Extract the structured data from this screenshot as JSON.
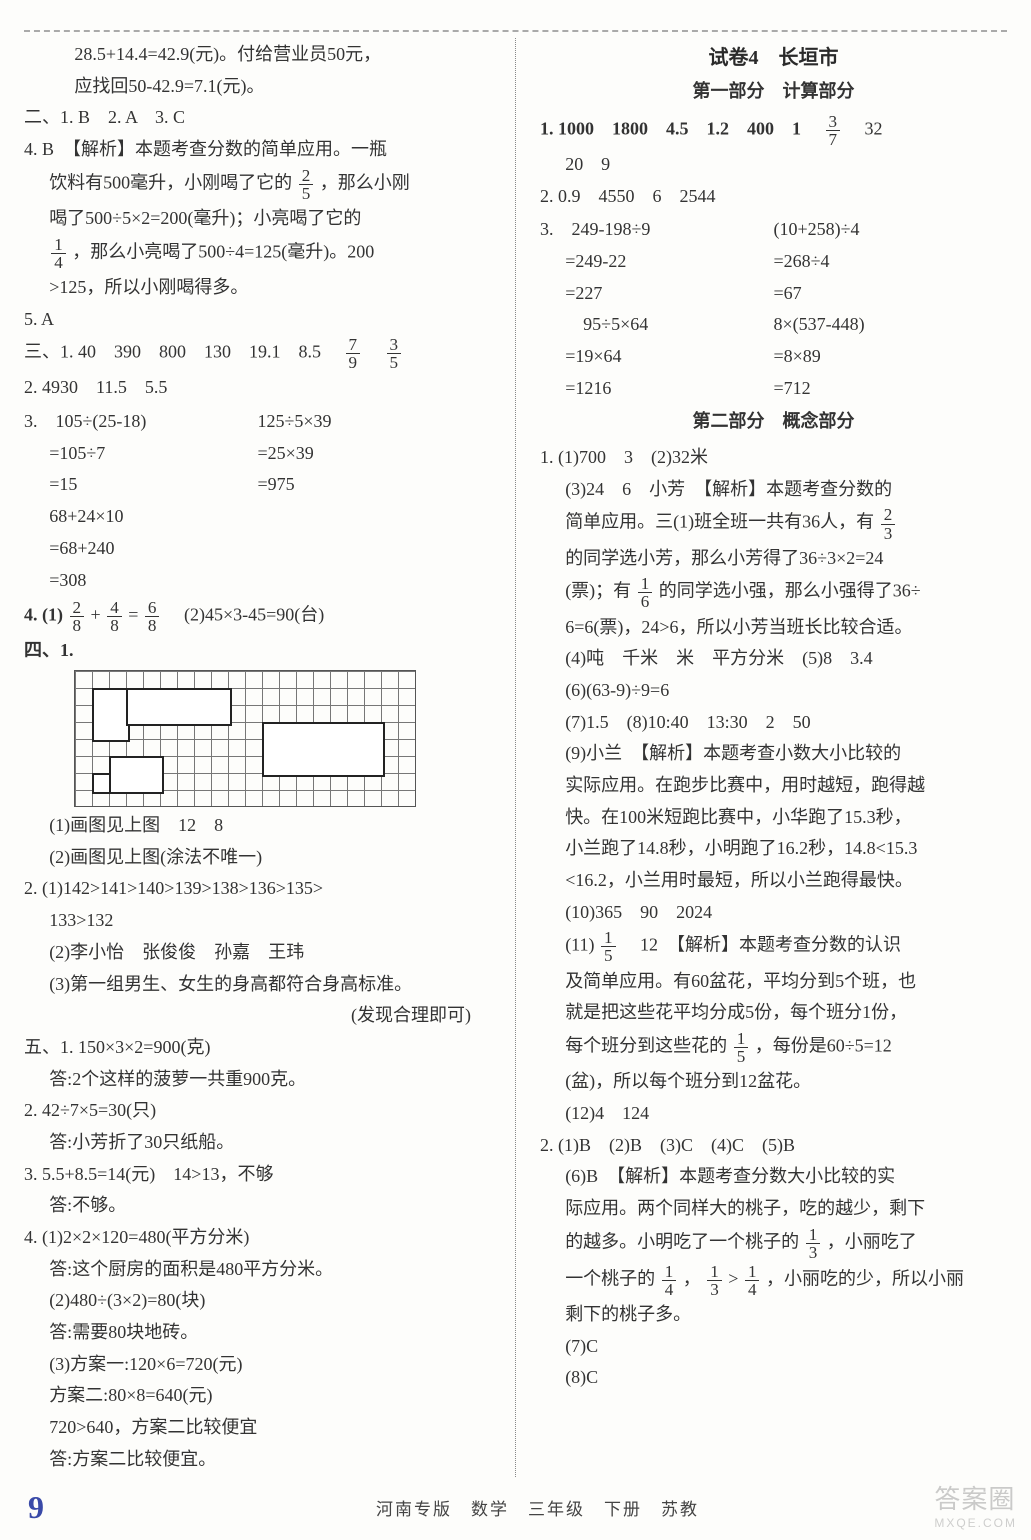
{
  "left": {
    "topLine1": "28.5+14.4=42.9(元)。付给营业员50元，",
    "topLine2": "应找回50-42.9=7.1(元)。",
    "two_heading": "二、1. B　2. A　3. C",
    "q4_head": "4. B　【解析】本题考查分数的简单应用。一瓶",
    "q4_l1a": "饮料有500毫升，小刚喝了它的",
    "q4_l1_frac_num": "2",
    "q4_l1_frac_den": "5",
    "q4_l1b": "，那么小刚",
    "q4_l2": "喝了500÷5×2=200(毫升)；小亮喝了它的",
    "q4_l3_frac_num": "1",
    "q4_l3_frac_den": "4",
    "q4_l3b": "，那么小亮喝了500÷4=125(毫升)。200",
    "q4_l4": ">125，所以小刚喝得多。",
    "q5": "5. A",
    "three_1a": "三、1. 40　390　800　130　19.1　8.5　",
    "three_1_f1n": "7",
    "three_1_f1d": "9",
    "three_1_f2n": "3",
    "three_1_f2d": "5",
    "three_2": "2. 4930　11.5　5.5",
    "three_3_l": "3.　105÷(25-18)",
    "three_3_r": "125÷5×39",
    "three_3_l2": "=105÷7",
    "three_3_r2": "=25×39",
    "three_3_l3": "=15",
    "three_3_r3": "=975",
    "three_3_l4": "68+24×10",
    "three_3_l5": "=68+240",
    "three_3_l6": "=308",
    "three_4a": "4. (1)",
    "t4_f1n": "2",
    "t4_f1d": "8",
    "t4_plus": "+",
    "t4_f2n": "4",
    "t4_f2d": "8",
    "t4_eq": "=",
    "t4_f3n": "6",
    "t4_f3d": "8",
    "three_4b": "　(2)45×3-45=90(台)",
    "four_head": "四、1.",
    "four_1_1": "(1)画图见上图　12　8",
    "four_1_2": "(2)画图见上图(涂法不唯一)",
    "four_2_1": "2. (1)142>141>140>139>138>136>135>",
    "four_2_1b": "133>132",
    "four_2_2": "(2)李小怡　张俊俊　孙嘉　王玮",
    "four_2_3": "(3)第一组男生、女生的身高都符合身高标准。",
    "four_2_3b": "(发现合理即可)",
    "five_1a": "五、1. 150×3×2=900(克)",
    "five_1b": "答:2个这样的菠萝一共重900克。",
    "five_2a": "2. 42÷7×5=30(只)",
    "five_2b": "答:小芳折了30只纸船。",
    "five_3a": "3. 5.5+8.5=14(元)　14>13，不够",
    "five_3b": "答:不够。",
    "five_4a": "4. (1)2×2×120=480(平方分米)",
    "five_4b": "答:这个厨房的面积是480平方分米。",
    "five_4c": "(2)480÷(3×2)=80(块)",
    "five_4d": "答:需要80块地砖。",
    "five_4e": "(3)方案一:120×6=720(元)",
    "five_4f": "方案二:80×8=640(元)",
    "five_4g": "720>640，方案二比较便宜",
    "five_4h": "答:方案二比较便宜。"
  },
  "right": {
    "title": "试卷4　长垣市",
    "part1": "第一部分　计算部分",
    "r1a": "1. 1000　1800　4.5　1.2　400　1　",
    "r1_fn": "3",
    "r1_fd": "7",
    "r1b": "　32",
    "r1c": "20　9",
    "r2": "2. 0.9　4550　6　2544",
    "r3_l1l": "3.　249-198÷9",
    "r3_l1r": "(10+258)÷4",
    "r3_l2l": "=249-22",
    "r3_l2r": "=268÷4",
    "r3_l3l": "=227",
    "r3_l3r": "=67",
    "r3_l4l": "　95÷5×64",
    "r3_l4r": "8×(537-448)",
    "r3_l5l": "=19×64",
    "r3_l5r": "=8×89",
    "r3_l6l": "=1216",
    "r3_l6r": "=712",
    "part2": "第二部分　概念部分",
    "p2_1_1": "1. (1)700　3　(2)32米",
    "p2_1_3a": "(3)24　6　小芳　【解析】本题考查分数的",
    "p2_1_3b": "简单应用。三(1)班全班一共有36人，有",
    "p2_1_3b_fn": "2",
    "p2_1_3b_fd": "3",
    "p2_1_3c": "的同学选小芳，那么小芳得了36÷3×2=24",
    "p2_1_3d_a": "(票)；有",
    "p2_1_3d_fn": "1",
    "p2_1_3d_fd": "6",
    "p2_1_3d_b": "的同学选小强，那么小强得了36÷",
    "p2_1_3e": "6=6(票)，24>6，所以小芳当班长比较合适。",
    "p2_1_4": "(4)吨　千米　米　平方分米　(5)8　3.4",
    "p2_1_6": "(6)(63-9)÷9=6",
    "p2_1_7": "(7)1.5　(8)10:40　13:30　2　50",
    "p2_1_9a": "(9)小兰　【解析】本题考查小数大小比较的",
    "p2_1_9b": "实际应用。在跑步比赛中，用时越短，跑得越",
    "p2_1_9c": "快。在100米短跑比赛中，小华跑了15.3秒，",
    "p2_1_9d": "小兰跑了14.8秒，小明跑了16.2秒，14.8<15.3",
    "p2_1_9e": "<16.2，小兰用时最短，所以小兰跑得最快。",
    "p2_1_10": "(10)365　90　2024",
    "p2_1_11a": "(11)",
    "p2_1_11_fn": "1",
    "p2_1_11_fd": "5",
    "p2_1_11b": "　12　【解析】本题考查分数的认识",
    "p2_1_11c": "及简单应用。有60盆花，平均分到5个班，也",
    "p2_1_11d": "就是把这些花平均分成5份，每个班分1份，",
    "p2_1_11e_a": "每个班分到这些花的",
    "p2_1_11e_fn": "1",
    "p2_1_11e_fd": "5",
    "p2_1_11e_b": "，每份是60÷5=12",
    "p2_1_11f": "(盆)，所以每个班分到12盆花。",
    "p2_1_12": "(12)4　124",
    "p2_2_1": "2. (1)B　(2)B　(3)C　(4)C　(5)B",
    "p2_2_6a": "(6)B　【解析】本题考查分数大小比较的实",
    "p2_2_6b_a": "际应用。两个同样大的桃子，吃的越少，剩下",
    "p2_2_6c_a": "的越多。小明吃了一个桃子的",
    "p2_2_6c_fn": "1",
    "p2_2_6c_fd": "3",
    "p2_2_6c_b": "，小丽吃了",
    "p2_2_6d_a": "一个桃子的",
    "p2_2_6d_f1n": "1",
    "p2_2_6d_f1d": "4",
    "p2_2_6d_comma": "，",
    "p2_2_6d_f2n": "1",
    "p2_2_6d_f2d": "3",
    "p2_2_6d_gt": ">",
    "p2_2_6d_f3n": "1",
    "p2_2_6d_f3d": "4",
    "p2_2_6d_b": "，小丽吃的少，所以小丽",
    "p2_2_6e": "剩下的桃子多。",
    "p2_2_7": "(7)C",
    "p2_2_8": "(8)C"
  },
  "footer": {
    "page": "9",
    "text": "河南专版　数学　三年级　下册　苏教"
  },
  "watermark": {
    "main": "答案圈",
    "sub": "MXQE.COM"
  }
}
